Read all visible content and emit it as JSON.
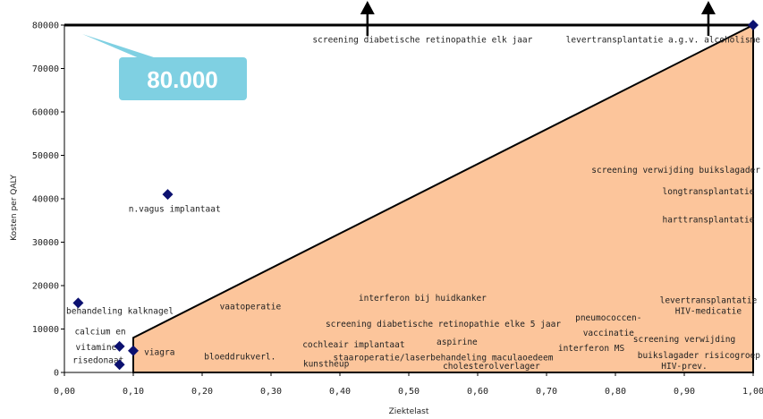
{
  "colors": {
    "region_fill": "#fcc59b",
    "marker": "#0c1170",
    "callout": "#7fd0e2",
    "axis": "#000000"
  },
  "chart_data": {
    "type": "scatter",
    "xlabel": "Ziektelast",
    "ylabel": "Kosten per QALY",
    "xlim": [
      0,
      1
    ],
    "ylim": [
      0,
      80000
    ],
    "x_ticks": [
      "0,00",
      "0,10",
      "0,20",
      "0,30",
      "0,40",
      "0,50",
      "0,60",
      "0,70",
      "0,80",
      "0,90",
      "1,00"
    ],
    "y_ticks": [
      "0",
      "10000",
      "20000",
      "30000",
      "40000",
      "50000",
      "60000",
      "70000",
      "80000"
    ],
    "grid": false,
    "threshold_region": {
      "polygon_data": [
        [
          0.1,
          0
        ],
        [
          0.1,
          8000
        ],
        [
          1.0,
          80000
        ],
        [
          1.0,
          0
        ]
      ]
    },
    "callout": "80.000",
    "arrows_up_at_x": [
      0.44,
      0.935
    ],
    "points": [
      {
        "x": 0.02,
        "y": 16000
      },
      {
        "x": 0.15,
        "y": 41000
      },
      {
        "x": 0.08,
        "y": 6000
      },
      {
        "x": 0.08,
        "y": 1800
      },
      {
        "x": 0.1,
        "y": 5000
      },
      {
        "x": 1.0,
        "y": 80000
      }
    ],
    "labels": [
      {
        "text": "screening diabetische retinopathie elk jaar",
        "x": 0.52,
        "y": 76000
      },
      {
        "text": "levertransplantatie a.g.v. alcoholisme",
        "x": 0.895,
        "y": 76000
      },
      {
        "text": "n.vagus implantaat",
        "x": 0.16,
        "y": 37000
      },
      {
        "text": "screening verwijding buikslagader",
        "x": 0.91,
        "y": 46000
      },
      {
        "text": "longtransplantatie",
        "x": 0.935,
        "y": 41000
      },
      {
        "text": "harttransplantatie",
        "x": 0.935,
        "y": 34500
      },
      {
        "text": "behandeling kalknagel",
        "x": 0.075,
        "y": 13500
      },
      {
        "text": "vaatoperatie",
        "x": 0.27,
        "y": 14500
      },
      {
        "text": "interferon bij huidkanker",
        "x": 0.52,
        "y": 16500
      },
      {
        "text": "levertransplantatie",
        "x": 0.935,
        "y": 16000
      },
      {
        "text": "HIV-medicatie",
        "x": 0.935,
        "y": 13500
      },
      {
        "text": "screening diabetische retinopathie elke 5 jaar",
        "x": 0.55,
        "y": 10500
      },
      {
        "text": "pneumococcen-",
        "x": 0.79,
        "y": 12000
      },
      {
        "text": "vaccinatie",
        "x": 0.79,
        "y": 8500
      },
      {
        "text": "calcium en",
        "x": 0.052,
        "y": 8800
      },
      {
        "text": "vitamine",
        "x": 0.046,
        "y": 5200
      },
      {
        "text": "risedonaat",
        "x": 0.049,
        "y": 2200
      },
      {
        "text": "viagra",
        "x": 0.138,
        "y": 4000
      },
      {
        "text": "bloeddrukverl.",
        "x": 0.255,
        "y": 3000
      },
      {
        "text": "cochleair implantaat",
        "x": 0.42,
        "y": 5800
      },
      {
        "text": "aspirine",
        "x": 0.57,
        "y": 6400
      },
      {
        "text": "interferon MS",
        "x": 0.765,
        "y": 5000
      },
      {
        "text": "screening verwijding",
        "x": 0.9,
        "y": 7000
      },
      {
        "text": "staaroperatie/laserbehandeling maculaoedeem",
        "x": 0.55,
        "y": 2800
      },
      {
        "text": "buikslagader risicogroep",
        "x": 0.93,
        "y": 3300
      },
      {
        "text": "kunstheup",
        "x": 0.38,
        "y": 1300
      },
      {
        "text": "cholesterolverlager",
        "x": 0.62,
        "y": 800
      },
      {
        "text": "HIV-prev.",
        "x": 0.9,
        "y": 800
      }
    ]
  }
}
